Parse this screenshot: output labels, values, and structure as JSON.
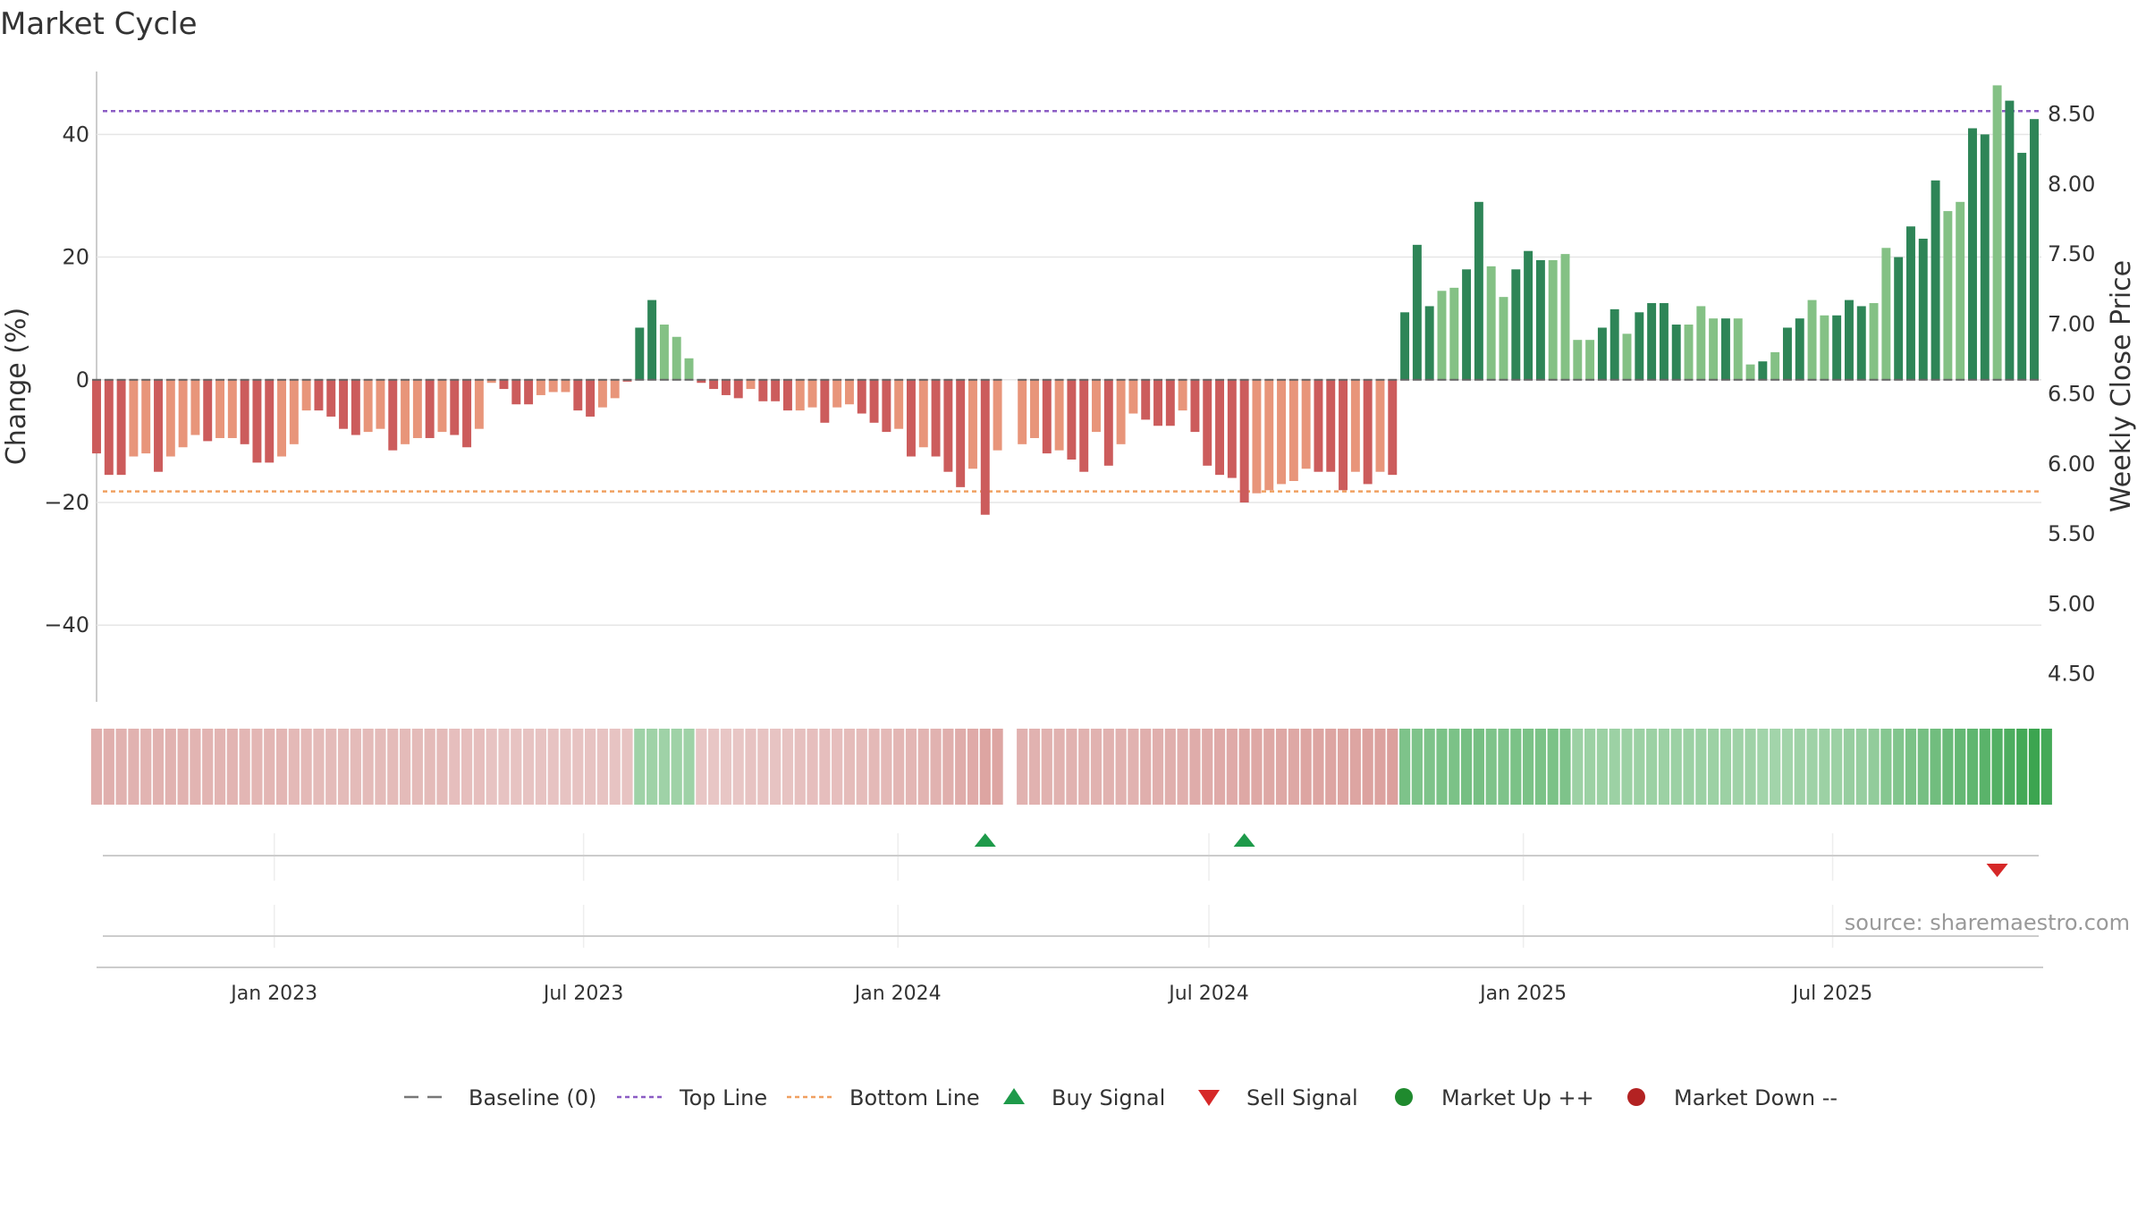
{
  "chart_data": {
    "type": "bar",
    "title": "Market Cycle",
    "ylabel_left": "Change (%)",
    "ylabel_right": "Weekly Close Price",
    "y_left_ticks": [
      {
        "value": 40,
        "label": "40"
      },
      {
        "value": 20,
        "label": "20"
      },
      {
        "value": 0,
        "label": "0"
      },
      {
        "value": -20,
        "label": "−20"
      },
      {
        "value": -40,
        "label": "−40"
      }
    ],
    "y_right_ticks": [
      "8.50",
      "8.00",
      "7.50",
      "7.00",
      "6.50",
      "6.00",
      "5.50",
      "5.00",
      "4.50"
    ],
    "y_right_range": [
      4.3,
      8.88
    ],
    "ylim": [
      -52.5,
      52
    ],
    "x_ticks": [
      "Jan 2023",
      "Jul 2023",
      "Jan 2024",
      "Jul 2024",
      "Jan 2025",
      "Jul 2025"
    ],
    "start_date": "2022-09-19",
    "end_date": "2025-10-27",
    "top_line": 43.8,
    "bottom_line": -18.2,
    "baseline": 0,
    "values": [
      -12,
      -15.5,
      -15.5,
      -12.5,
      -12,
      -15,
      -12.5,
      -11,
      -9,
      -10,
      -9.5,
      -9.5,
      -10.5,
      -13.5,
      -13.5,
      -12.5,
      -10.5,
      -5,
      -5,
      -6,
      -8,
      -9,
      -8.5,
      -8,
      -11.5,
      -10.5,
      -9.5,
      -9.5,
      -8.5,
      -9,
      -11,
      -8,
      -0.5,
      -1.5,
      -4,
      -4,
      -2.5,
      -2,
      -2,
      -5,
      -6,
      -4.5,
      -3,
      -0.3,
      8.5,
      13,
      9,
      7,
      3.5,
      -0.5,
      -1.5,
      -2.5,
      -3,
      -1.5,
      -3.5,
      -3.5,
      -5,
      -5,
      -4.5,
      -7,
      -4.5,
      -4,
      -5.5,
      -7,
      -8.5,
      -8,
      -12.5,
      -11,
      -12.5,
      -15,
      -17.5,
      -14.5,
      -22,
      -11.5,
      null,
      -10.5,
      -9.5,
      -12,
      -11.5,
      -13,
      -15,
      -8.5,
      -14,
      -10.5,
      -5.5,
      -6.5,
      -7.5,
      -7.5,
      -5,
      -8.5,
      -14,
      -15.5,
      -16,
      -20,
      -18.5,
      -18,
      -17,
      -16.5,
      -14.5,
      -15,
      -15,
      -18,
      -15,
      -17,
      -15,
      -15.5,
      11,
      22,
      12,
      14.5,
      15,
      18,
      29,
      18.5,
      13.5,
      18,
      21,
      19.5,
      19.5,
      20.5,
      6.5,
      6.5,
      8.5,
      11.5,
      7.5,
      11,
      12.5,
      12.5,
      9,
      9,
      12,
      10,
      10,
      10,
      2.5,
      3,
      4.5,
      8.5,
      10,
      13,
      10.5,
      10.5,
      13,
      12,
      12.5,
      21.5,
      20,
      25,
      23,
      32.5,
      27.5,
      29,
      41,
      40,
      48,
      45.5,
      37,
      42.5
    ],
    "bar_tones": [
      2,
      2,
      2,
      1,
      1,
      2,
      1,
      1,
      1,
      2,
      1,
      1,
      2,
      2,
      2,
      1,
      1,
      1,
      2,
      2,
      2,
      2,
      1,
      1,
      2,
      1,
      1,
      2,
      1,
      2,
      2,
      1,
      1,
      2,
      2,
      2,
      1,
      1,
      1,
      2,
      2,
      1,
      1,
      2,
      3,
      3,
      4,
      4,
      4,
      2,
      2,
      2,
      2,
      1,
      2,
      2,
      2,
      1,
      1,
      2,
      1,
      1,
      2,
      2,
      2,
      1,
      2,
      1,
      2,
      2,
      2,
      1,
      2,
      1,
      0,
      1,
      1,
      2,
      1,
      2,
      2,
      1,
      2,
      1,
      1,
      2,
      2,
      2,
      1,
      2,
      2,
      2,
      2,
      2,
      1,
      1,
      1,
      1,
      1,
      2,
      2,
      2,
      1,
      2,
      1,
      2,
      3,
      3,
      3,
      4,
      4,
      3,
      3,
      4,
      4,
      3,
      3,
      3,
      4,
      4,
      4,
      4,
      3,
      3,
      4,
      3,
      3,
      3,
      3,
      4,
      4,
      4,
      3,
      4,
      4,
      3,
      4,
      3,
      3,
      4,
      4,
      3,
      3,
      3,
      4,
      4,
      3,
      3,
      3,
      3,
      4,
      4,
      3,
      3,
      4,
      3,
      3,
      3,
      3,
      4,
      4,
      4,
      3
    ],
    "strip_levels": [
      -0.45,
      -0.45,
      -0.42,
      -0.42,
      -0.4,
      -0.42,
      -0.42,
      -0.42,
      -0.4,
      -0.4,
      -0.4,
      -0.4,
      -0.38,
      -0.38,
      -0.38,
      -0.38,
      -0.35,
      -0.35,
      -0.33,
      -0.33,
      -0.33,
      -0.33,
      -0.33,
      -0.33,
      -0.33,
      -0.33,
      -0.33,
      -0.33,
      -0.33,
      -0.3,
      -0.3,
      -0.3,
      -0.25,
      -0.25,
      -0.25,
      -0.25,
      -0.25,
      -0.25,
      -0.25,
      -0.25,
      -0.25,
      -0.25,
      -0.25,
      -0.25,
      0.4,
      0.4,
      0.4,
      0.4,
      0.4,
      -0.22,
      -0.22,
      -0.22,
      -0.22,
      -0.25,
      -0.25,
      -0.25,
      -0.25,
      -0.28,
      -0.3,
      -0.3,
      -0.3,
      -0.32,
      -0.32,
      -0.35,
      -0.35,
      -0.38,
      -0.38,
      -0.4,
      -0.42,
      -0.45,
      -0.48,
      -0.5,
      -0.55,
      -0.55,
      null,
      -0.42,
      -0.42,
      -0.42,
      -0.42,
      -0.42,
      -0.42,
      -0.42,
      -0.42,
      -0.42,
      -0.42,
      -0.45,
      -0.45,
      -0.45,
      -0.45,
      -0.48,
      -0.48,
      -0.5,
      -0.5,
      -0.52,
      -0.52,
      -0.52,
      -0.52,
      -0.52,
      -0.55,
      -0.55,
      -0.55,
      -0.55,
      -0.55,
      -0.58,
      -0.58,
      -0.6,
      0.6,
      0.6,
      0.6,
      0.62,
      0.62,
      0.65,
      0.65,
      0.6,
      0.6,
      0.62,
      0.62,
      0.62,
      0.62,
      0.6,
      0.42,
      0.42,
      0.42,
      0.42,
      0.42,
      0.42,
      0.42,
      0.42,
      0.42,
      0.42,
      0.42,
      0.42,
      0.42,
      0.4,
      0.4,
      0.38,
      0.38,
      0.38,
      0.4,
      0.4,
      0.42,
      0.42,
      0.45,
      0.45,
      0.48,
      0.55,
      0.58,
      0.62,
      0.65,
      0.68,
      0.72,
      0.75,
      0.78,
      0.82,
      0.86,
      0.9,
      0.95,
      1.0,
      0.95
    ],
    "buy_signals": [
      72,
      93
    ],
    "sell_signals": [
      154
    ],
    "source": "source: sharemaestro.com",
    "legend": [
      {
        "label": "Baseline (0)",
        "marker": "dash-line",
        "color": "#777777"
      },
      {
        "label": "Top Line",
        "marker": "dotted-line",
        "color": "#8b5cc4"
      },
      {
        "label": "Bottom Line",
        "marker": "dotted-line",
        "color": "#f0a060"
      },
      {
        "label": "Buy Signal",
        "marker": "triangle-up",
        "color": "#1e9a4a"
      },
      {
        "label": "Sell Signal",
        "marker": "triangle-down",
        "color": "#d62828"
      },
      {
        "label": "Market Up ++",
        "marker": "circle",
        "color": "#1f8a2e"
      },
      {
        "label": "Market Down --",
        "marker": "circle",
        "color": "#b32222"
      }
    ],
    "colors": {
      "red_dark": "#cc5c5c",
      "red_light": "#e8957a",
      "green_dark": "#2e8557",
      "green_light": "#84c185",
      "top_line": "#8b5cc4",
      "bottom_line": "#f0a060",
      "grid": "#e6e6e6"
    }
  }
}
